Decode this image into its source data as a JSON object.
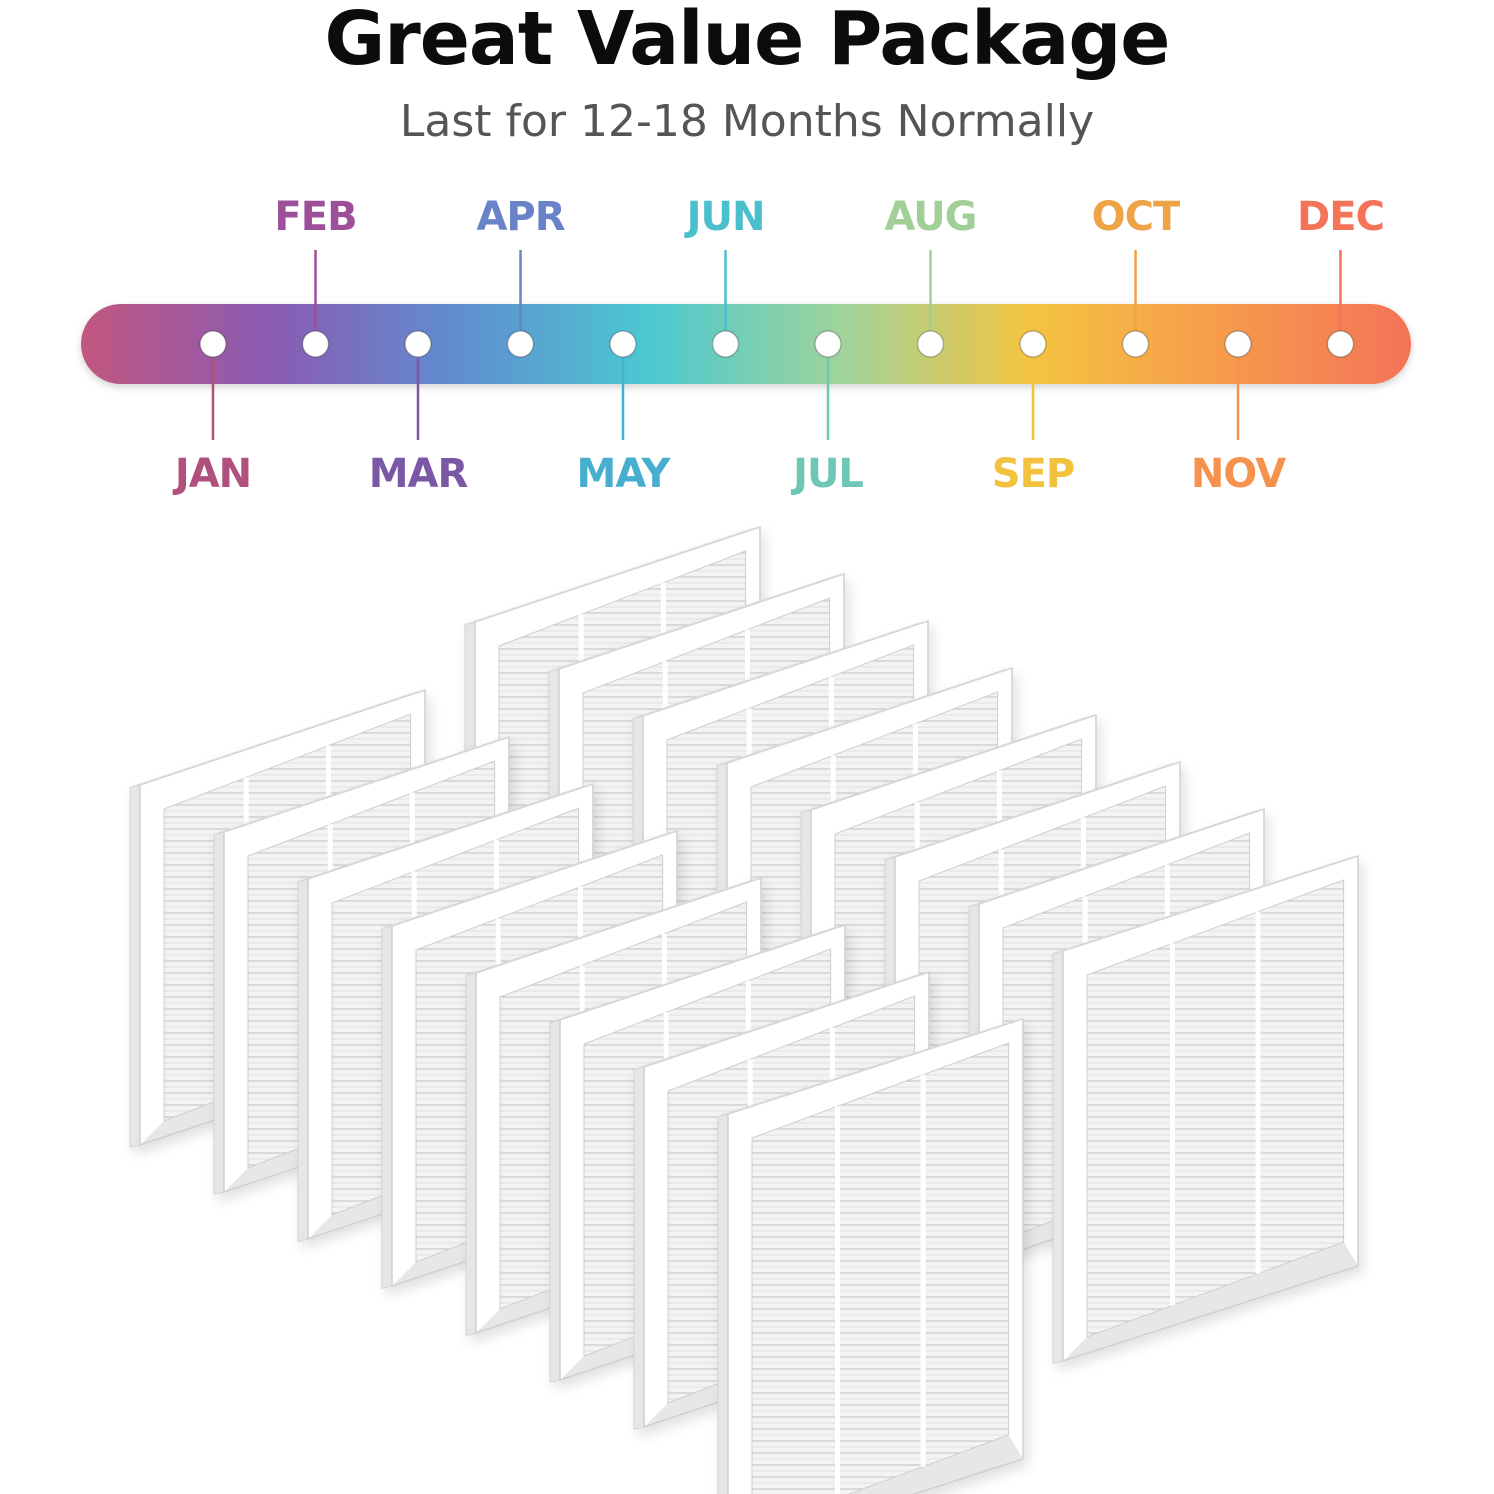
{
  "header": {
    "title": "Great Value Package",
    "subtitle": "Last for 12-18 Months Normally"
  },
  "timeline": {
    "gradient_colors": [
      "#c2577f",
      "#8a5bb3",
      "#5f8fd0",
      "#4cc9d0",
      "#9fd39b",
      "#f4c440",
      "#f69b4c",
      "#f47358"
    ],
    "months": [
      {
        "label": "JAN",
        "position": "below",
        "color": "#b0507d"
      },
      {
        "label": "FEB",
        "position": "above",
        "color": "#9d4f99"
      },
      {
        "label": "MAR",
        "position": "below",
        "color": "#7b58a6"
      },
      {
        "label": "APR",
        "position": "above",
        "color": "#6a83c8"
      },
      {
        "label": "MAY",
        "position": "below",
        "color": "#47aed0"
      },
      {
        "label": "JUN",
        "position": "above",
        "color": "#4bc0cc"
      },
      {
        "label": "JUL",
        "position": "below",
        "color": "#6ec6b5"
      },
      {
        "label": "AUG",
        "position": "above",
        "color": "#a2cf98"
      },
      {
        "label": "SEP",
        "position": "below",
        "color": "#f2c23f"
      },
      {
        "label": "OCT",
        "position": "above",
        "color": "#eea347"
      },
      {
        "label": "NOV",
        "position": "below",
        "color": "#f5934e"
      },
      {
        "label": "DEC",
        "position": "above",
        "color": "#f37458"
      }
    ]
  },
  "illustration": {
    "subject": "air-filter-icon",
    "frame_color": "#ffffff",
    "media_color": "#f2f2f2",
    "shadow_color": "#d0d0d0"
  }
}
